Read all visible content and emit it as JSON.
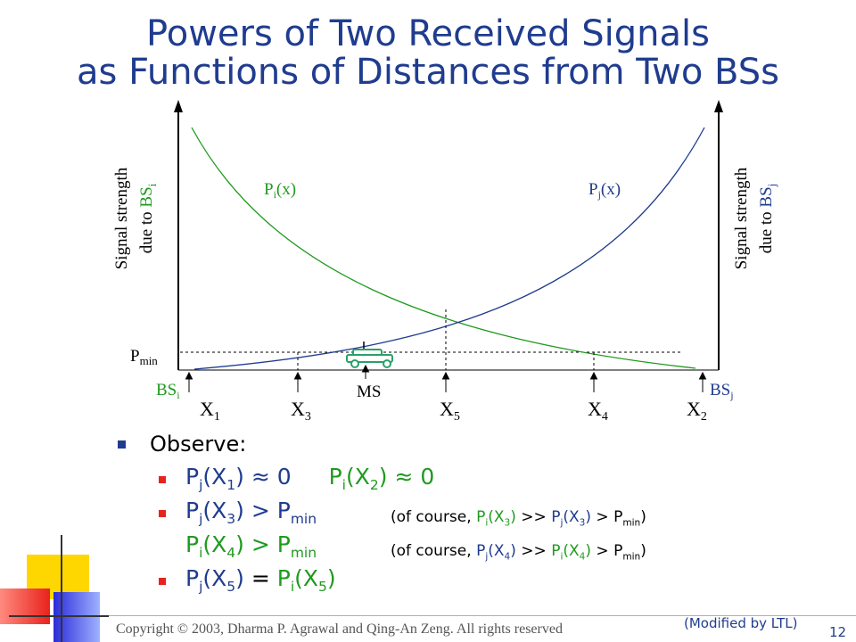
{
  "title": {
    "line1": "Powers of Two Received Signals",
    "line2": "as Functions of Distances from Two BSs"
  },
  "diagram": {
    "left_axis_label": "Signal strength",
    "left_axis_label2_prefix": "due to ",
    "left_axis_label2_bs": "BS",
    "left_axis_label2_sub": "i",
    "right_axis_label": "Signal strength",
    "right_axis_label2_prefix": "due to ",
    "right_axis_label2_bs": "BS",
    "right_axis_label2_sub": "j",
    "curve_i": {
      "base": "P",
      "sub": "i",
      "arg": "(x)"
    },
    "curve_j": {
      "base": "P",
      "sub": "j",
      "arg": "(x)"
    },
    "pmin": {
      "base": "P",
      "sub": "min"
    },
    "bs_left": {
      "base": "BS",
      "sub": "i"
    },
    "bs_right": {
      "base": "BS",
      "sub": "j"
    },
    "ms_label": "MS",
    "points": [
      {
        "base": "X",
        "sub": "1"
      },
      {
        "base": "X",
        "sub": "3"
      },
      {
        "base": "X",
        "sub": "5"
      },
      {
        "base": "X",
        "sub": "4"
      },
      {
        "base": "X",
        "sub": "2"
      }
    ]
  },
  "observe": {
    "heading": "Observe:",
    "line1a": "P",
    "line1a_sub": "j",
    "line1a_arg": "(X",
    "line1a_arg_sub": "1",
    "line1a_end": ") ≈ 0",
    "line1b": "P",
    "line1b_sub": "i",
    "line1b_arg": "(X",
    "line1b_arg_sub": "2",
    "line1b_end": ") ≈ 0",
    "line2_main": "P",
    "line2_sub": "j",
    "line2_arg": "(X",
    "line2_arg_sub": "3",
    "line2_gt": ") > P",
    "line2_min": "min",
    "line2_note_open": "(of course, ",
    "line2_note_p1": "P",
    "line2_note_p1_sub": "i",
    "line2_note_p1_arg": "(X",
    "line2_note_p1_arg_sub": "3",
    "line2_note_p1_close": ")",
    "line2_note_mid": " >> ",
    "line2_note_p2": "P",
    "line2_note_p2_sub": "j",
    "line2_note_p2_arg": "(X",
    "line2_note_p2_arg_sub": "3",
    "line2_note_p2_close": ")",
    "line2_note_end": " > P",
    "line2_note_min": "min",
    "line2_note_close": ")",
    "line3_main": "P",
    "line3_sub": "i",
    "line3_arg": "(X",
    "line3_arg_sub": "4",
    "line3_gt": ") > P",
    "line3_min": "min",
    "line3_note_open": "(of course, ",
    "line3_note_p1": "P",
    "line3_note_p1_sub": "j",
    "line3_note_p1_arg": "(X",
    "line3_note_p1_arg_sub": "4",
    "line3_note_p1_close": ")",
    "line3_note_mid": " >> ",
    "line3_note_p2": "P",
    "line3_note_p2_sub": "i",
    "line3_note_p2_arg": "(X",
    "line3_note_p2_arg_sub": "4",
    "line3_note_p2_close": ")",
    "line3_note_end": " > P",
    "line3_note_min": "min",
    "line3_note_close": ")",
    "line4_a": "P",
    "line4_a_sub": "j",
    "line4_a_arg": "(X",
    "line4_a_arg_sub": "5",
    "line4_a_close": ")",
    "line4_eq": " = ",
    "line4_b": "P",
    "line4_b_sub": "i",
    "line4_b_arg": "(X",
    "line4_b_arg_sub": "5",
    "line4_b_close": ")"
  },
  "footer": {
    "copyright": "Copyright © 2003, Dharma P. Agrawal and Qing-An Zeng. All rights reserved",
    "modified": "(Modified by LTL)",
    "page": "12"
  },
  "colors": {
    "title": "#1f3c8f",
    "green": "#1f9a1f",
    "blue": "#1f3c8f",
    "car": "#2aa06a"
  }
}
